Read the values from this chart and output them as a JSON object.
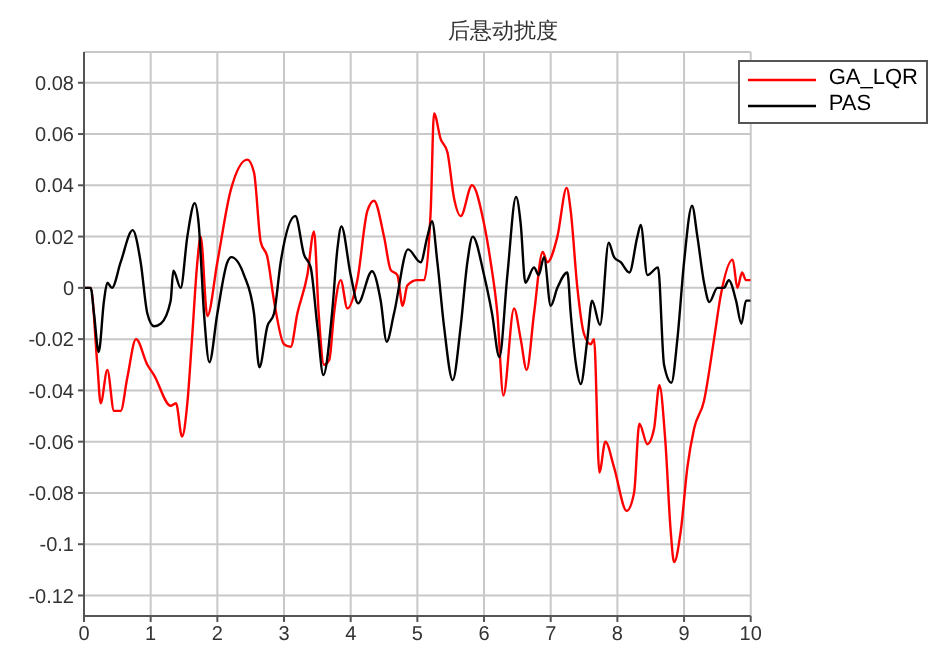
{
  "chart_data": {
    "type": "line",
    "title": "后悬动扰度",
    "xlim": [
      0,
      10
    ],
    "xticks": [
      0,
      1,
      2,
      3,
      4,
      5,
      6,
      7,
      8,
      9,
      10
    ],
    "ylim": [
      -0.128,
      0.092
    ],
    "yticks": [
      -0.12,
      -0.1,
      -0.08,
      -0.06,
      -0.04,
      -0.02,
      0,
      0.02,
      0.04,
      0.06,
      0.08
    ],
    "grid": true,
    "legend": "top right",
    "marker": "none",
    "line_style": "solid",
    "series": [
      {
        "name": "GA_LQR",
        "color": "#ff0000",
        "x": [
          0,
          0.1,
          0.2,
          0.25,
          0.35,
          0.45,
          0.55,
          0.65,
          0.78,
          0.95,
          1.05,
          1.3,
          1.38,
          1.47,
          1.55,
          1.62,
          1.7,
          1.75,
          1.85,
          2.0,
          2.2,
          2.45,
          2.55,
          2.65,
          2.75,
          2.85,
          3.0,
          3.1,
          3.2,
          3.35,
          3.45,
          3.52,
          3.6,
          3.68,
          3.75,
          3.85,
          3.95,
          4.1,
          4.25,
          4.35,
          4.5,
          4.6,
          4.7,
          4.78,
          4.85,
          5.0,
          5.1,
          5.2,
          5.25,
          5.35,
          5.45,
          5.55,
          5.65,
          5.82,
          6.0,
          6.1,
          6.2,
          6.29,
          6.45,
          6.55,
          6.64,
          6.75,
          6.88,
          6.95,
          7.1,
          7.24,
          7.3,
          7.4,
          7.5,
          7.6,
          7.65,
          7.73,
          7.82,
          7.95,
          8.14,
          8.25,
          8.33,
          8.45,
          8.55,
          8.63,
          8.72,
          8.8,
          8.85,
          8.95,
          9.05,
          9.15,
          9.3,
          9.45,
          9.55,
          9.73,
          9.8,
          9.87,
          9.93,
          10
        ],
        "values": [
          0,
          0,
          -0.03,
          -0.045,
          -0.032,
          -0.048,
          -0.048,
          -0.035,
          -0.02,
          -0.03,
          -0.034,
          -0.046,
          -0.045,
          -0.058,
          -0.045,
          -0.02,
          0.01,
          0.02,
          -0.011,
          0.01,
          0.038,
          0.05,
          0.045,
          0.018,
          0.012,
          -0.005,
          -0.022,
          -0.023,
          -0.01,
          0.005,
          0.022,
          -0.01,
          -0.03,
          -0.028,
          -0.01,
          0.003,
          -0.008,
          0.003,
          0.03,
          0.034,
          0.02,
          0.007,
          0.005,
          -0.007,
          0.001,
          0.003,
          0.003,
          0.03,
          0.068,
          0.058,
          0.053,
          0.035,
          0.028,
          0.04,
          0.025,
          0.01,
          -0.01,
          -0.042,
          -0.008,
          -0.02,
          -0.032,
          -0.01,
          0.014,
          0.01,
          0.02,
          0.039,
          0.03,
          0,
          -0.018,
          -0.022,
          -0.02,
          -0.072,
          -0.06,
          -0.07,
          -0.087,
          -0.08,
          -0.053,
          -0.061,
          -0.055,
          -0.038,
          -0.06,
          -0.095,
          -0.107,
          -0.095,
          -0.07,
          -0.055,
          -0.044,
          -0.02,
          -0.003,
          0.011,
          0,
          0.006,
          0.003,
          0.003
        ]
      },
      {
        "name": "PAS",
        "color": "#000000",
        "x": [
          0,
          0.1,
          0.15,
          0.22,
          0.3,
          0.35,
          0.42,
          0.55,
          0.73,
          0.85,
          0.95,
          1.05,
          1.15,
          1.3,
          1.34,
          1.45,
          1.55,
          1.66,
          1.72,
          1.8,
          1.88,
          2.0,
          2.15,
          2.21,
          2.4,
          2.55,
          2.63,
          2.75,
          2.85,
          2.95,
          3.17,
          3.3,
          3.4,
          3.5,
          3.59,
          3.72,
          3.8,
          3.86,
          4.0,
          4.11,
          4.32,
          4.45,
          4.54,
          4.65,
          4.86,
          5.05,
          5.15,
          5.22,
          5.3,
          5.4,
          5.53,
          5.65,
          5.75,
          5.83,
          6.0,
          6.12,
          6.23,
          6.35,
          6.48,
          6.55,
          6.62,
          6.75,
          6.82,
          6.9,
          7.0,
          7.1,
          7.25,
          7.3,
          7.38,
          7.45,
          7.55,
          7.62,
          7.74,
          7.87,
          7.95,
          8.05,
          8.18,
          8.3,
          8.35,
          8.45,
          8.61,
          8.7,
          8.81,
          8.9,
          9.0,
          9.12,
          9.2,
          9.3,
          9.38,
          9.5,
          9.6,
          9.67,
          9.78,
          9.86,
          9.93,
          10
        ],
        "values": [
          0,
          0,
          -0.01,
          -0.025,
          -0.005,
          0.002,
          0,
          0.01,
          0.0225,
          0.01,
          -0.01,
          -0.015,
          -0.014,
          -0.005,
          0.0067,
          0,
          0.02,
          0.033,
          0.025,
          -0.01,
          -0.029,
          -0.01,
          0.01,
          0.012,
          0.005,
          -0.01,
          -0.031,
          -0.015,
          -0.01,
          0.01,
          0.028,
          0.013,
          0.008,
          -0.015,
          -0.034,
          -0.01,
          0.015,
          0.024,
          0.005,
          -0.006,
          0.0065,
          -0.005,
          -0.021,
          -0.01,
          0.015,
          0.01,
          0.02,
          0.026,
          0.01,
          -0.015,
          -0.036,
          -0.015,
          0.01,
          0.02,
          0.005,
          -0.01,
          -0.027,
          0.005,
          0.0355,
          0.025,
          0.002,
          0.008,
          0.005,
          0.012,
          -0.007,
          0,
          0.006,
          -0.01,
          -0.03,
          -0.0375,
          -0.02,
          -0.005,
          -0.0145,
          0.0176,
          0.012,
          0.01,
          0.006,
          0.02,
          0.0245,
          0.005,
          0.008,
          -0.03,
          -0.037,
          -0.02,
          0.01,
          0.032,
          0.02,
          0.002,
          -0.0055,
          0,
          0,
          0.003,
          -0.005,
          -0.014,
          -0.005,
          -0.005
        ]
      }
    ]
  }
}
